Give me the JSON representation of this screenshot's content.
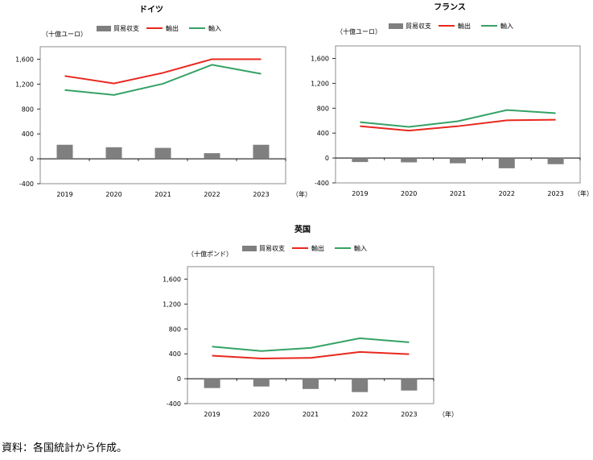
{
  "source_note": "資料：各国統計から作成。",
  "colors": {
    "balance": "#7f7f7f",
    "exports": "#e8281e",
    "imports": "#35a265",
    "axis": "#000000",
    "frame": "#8c8c8c"
  },
  "legend": {
    "balance": "貿易収支",
    "exports": "輸出",
    "imports": "輸入"
  },
  "chart_data": [
    {
      "type": "bar+line",
      "title": "ドイツ",
      "unit_label": "（十億ユーロ）",
      "x_unit": "（年）",
      "categories": [
        "2019",
        "2020",
        "2021",
        "2022",
        "2023"
      ],
      "ylim": [
        -400,
        1800
      ],
      "yticks": [
        "-400",
        "0",
        "400",
        "800",
        "1,200",
        "1,600"
      ],
      "ytick_values": [
        -400,
        0,
        400,
        800,
        1200,
        1600
      ],
      "series": [
        {
          "name": "貿易収支",
          "kind": "bar",
          "values": [
            225,
            185,
            175,
            90,
            225
          ]
        },
        {
          "name": "輸出",
          "kind": "line",
          "values": [
            1330,
            1210,
            1380,
            1600,
            1600
          ]
        },
        {
          "name": "輸入",
          "kind": "line",
          "values": [
            1105,
            1025,
            1205,
            1510,
            1365
          ]
        }
      ]
    },
    {
      "type": "bar+line",
      "title": "フランス",
      "unit_label": "（十億ユーロ）",
      "x_unit": "（年）",
      "categories": [
        "2019",
        "2020",
        "2021",
        "2022",
        "2023"
      ],
      "ylim": [
        -400,
        1800
      ],
      "yticks": [
        "-400",
        "0",
        "400",
        "800",
        "1,200",
        "1,600"
      ],
      "ytick_values": [
        -400,
        0,
        400,
        800,
        1200,
        1600
      ],
      "series": [
        {
          "name": "貿易収支",
          "kind": "bar",
          "values": [
            -65,
            -70,
            -85,
            -165,
            -100
          ]
        },
        {
          "name": "輸出",
          "kind": "line",
          "values": [
            510,
            440,
            510,
            605,
            615
          ]
        },
        {
          "name": "輸入",
          "kind": "line",
          "values": [
            575,
            500,
            590,
            770,
            720
          ]
        }
      ]
    },
    {
      "type": "bar+line",
      "title": "英国",
      "unit_label": "（十億ポンド）",
      "x_unit": "（年）",
      "categories": [
        "2019",
        "2020",
        "2021",
        "2022",
        "2023"
      ],
      "ylim": [
        -400,
        1800
      ],
      "yticks": [
        "-400",
        "0",
        "400",
        "800",
        "1,200",
        "1,600"
      ],
      "ytick_values": [
        -400,
        0,
        400,
        800,
        1200,
        1600
      ],
      "series": [
        {
          "name": "貿易収支",
          "kind": "bar",
          "values": [
            -150,
            -125,
            -165,
            -215,
            -190
          ]
        },
        {
          "name": "輸出",
          "kind": "line",
          "values": [
            370,
            325,
            335,
            430,
            395
          ]
        },
        {
          "name": "輸入",
          "kind": "line",
          "values": [
            515,
            445,
            495,
            650,
            585
          ]
        }
      ]
    }
  ]
}
